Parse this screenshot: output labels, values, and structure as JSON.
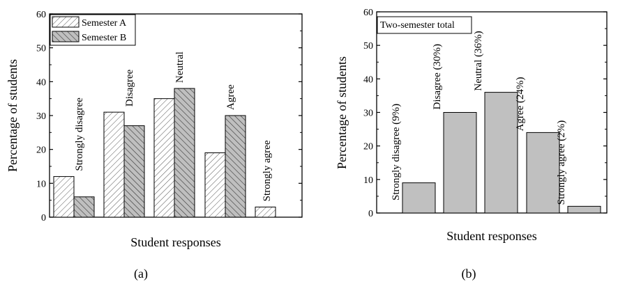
{
  "chart_data": [
    {
      "type": "bar",
      "panel_label": "(a)",
      "categories": [
        "Strongly disagree",
        "Disagree",
        "Neutral",
        "Agree",
        "Strongly agree"
      ],
      "series": [
        {
          "name": "Semester A",
          "values": [
            12,
            31,
            35,
            19,
            3
          ],
          "pattern": "hatch-forward",
          "color": "#ffffff"
        },
        {
          "name": "Semester B",
          "values": [
            6,
            27,
            38,
            30,
            0
          ],
          "pattern": "hatch-back",
          "color": "#bfbfbf"
        }
      ],
      "xlabel": "Student responses",
      "ylabel": "Percentage of students",
      "ylim": [
        0,
        60
      ],
      "yticks": [
        0,
        10,
        20,
        30,
        40,
        50,
        60
      ],
      "legend": {
        "placement": "top-left"
      },
      "grid": false
    },
    {
      "type": "bar",
      "panel_label": "(b)",
      "categories": [
        "Strongly disagree (9%)",
        "Disagree (30%)",
        "Neutral (36%)",
        "Agree (24%)",
        "Strongly agree (2%)"
      ],
      "series": [
        {
          "name": "Two-semester total",
          "values": [
            9,
            30,
            36,
            24,
            2
          ],
          "color": "#c0c0c0"
        }
      ],
      "xlabel": "Student responses",
      "ylabel": "Percentage of students",
      "ylim": [
        0,
        60
      ],
      "yticks": [
        0,
        10,
        20,
        30,
        40,
        50,
        60
      ],
      "legend": {
        "placement": "top-left"
      },
      "grid": false
    }
  ]
}
